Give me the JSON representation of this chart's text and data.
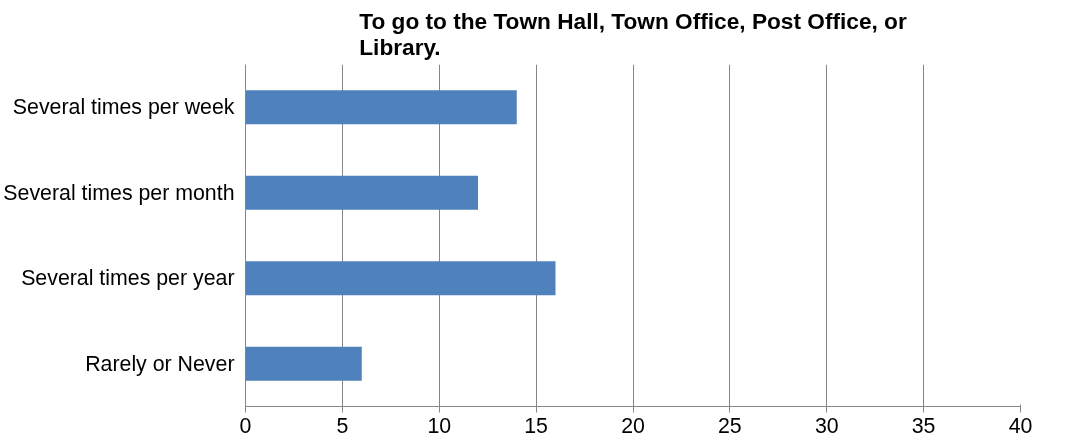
{
  "chart_data": {
    "type": "bar",
    "orientation": "horizontal",
    "title": "To go to the Town Hall, Town Office, Post Office, or Library.",
    "categories": [
      "Several times per week",
      "Several times per month",
      "Several times per year",
      "Rarely or Never"
    ],
    "values": [
      14,
      12,
      16,
      6
    ],
    "color": "#4f81bd",
    "xlim": [
      0,
      40
    ],
    "xticks": [
      0,
      5,
      10,
      15,
      20,
      25,
      30,
      35,
      40
    ],
    "grid": "x"
  }
}
